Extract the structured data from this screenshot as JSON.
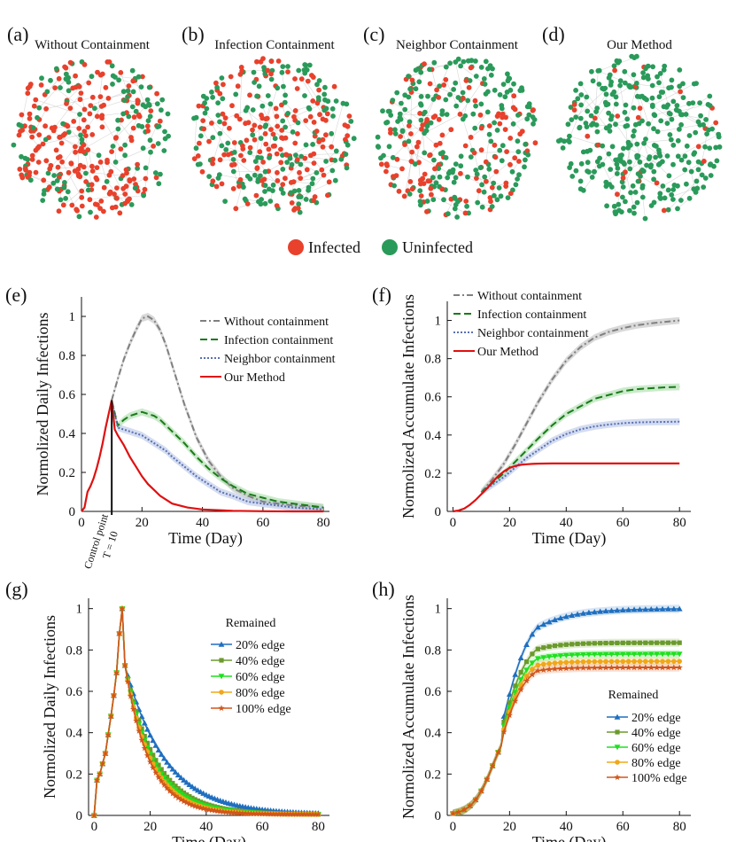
{
  "colors": {
    "infected": "#e8412c",
    "uninfected": "#2a9a5a",
    "wo": "#808080",
    "ic": "#1a7a1a",
    "nc": "#5a70b0",
    "ours": "#e01010",
    "e20": "#1f6fc0",
    "e40": "#6b9a2c",
    "e60": "#1fe01f",
    "e80": "#f0a818",
    "e100": "#d0561c"
  },
  "networks": [
    {
      "tag": "(a)",
      "title": "Without Containment",
      "infected_fraction": 0.72
    },
    {
      "tag": "(b)",
      "title": "Infection Containment",
      "infected_fraction": 0.55
    },
    {
      "tag": "(c)",
      "title": "Neighbor Containment",
      "infected_fraction": 0.42
    },
    {
      "tag": "(d)",
      "title": "Our Method",
      "infected_fraction": 0.08
    }
  ],
  "node_legend": {
    "infected": "Infected",
    "uninfected": "Uninfected"
  },
  "chart_data": [
    {
      "id": "e",
      "tag": "(e)",
      "type": "line",
      "xlabel": "Time (Day)",
      "ylabel": "Normolized Daily Infections",
      "xlim": [
        0,
        82
      ],
      "ylim": [
        0,
        1.1
      ],
      "xticks": [
        0,
        20,
        40,
        60,
        80
      ],
      "yticks": [
        0,
        0.2,
        0.4,
        0.6,
        0.8,
        1
      ],
      "ytick_labels": [
        "0",
        "0.2",
        "0.4",
        "0.6",
        "0.8",
        "1"
      ],
      "annotation": {
        "x": 10,
        "label1": "Control point",
        "label2": "T = 10"
      },
      "series": [
        {
          "name": "Without containment",
          "key": "wo",
          "style": "dashdot",
          "shade": true,
          "x": [
            10,
            12,
            14,
            16,
            18,
            20,
            22,
            24,
            26,
            28,
            30,
            34,
            38,
            42,
            46,
            50,
            55,
            60,
            65,
            70,
            75,
            80
          ],
          "y": [
            0.57,
            0.68,
            0.78,
            0.86,
            0.93,
            0.99,
            1.0,
            0.98,
            0.93,
            0.85,
            0.75,
            0.55,
            0.38,
            0.26,
            0.18,
            0.12,
            0.08,
            0.05,
            0.04,
            0.03,
            0.025,
            0.02
          ]
        },
        {
          "name": "Infection containment",
          "key": "ic",
          "style": "dash",
          "shade": true,
          "x": [
            10,
            12,
            14,
            16,
            18,
            20,
            22,
            24,
            26,
            28,
            30,
            34,
            38,
            42,
            46,
            50,
            55,
            60,
            65,
            70,
            75,
            80
          ],
          "y": [
            0.57,
            0.44,
            0.47,
            0.49,
            0.5,
            0.51,
            0.5,
            0.49,
            0.47,
            0.44,
            0.41,
            0.35,
            0.28,
            0.22,
            0.17,
            0.13,
            0.09,
            0.07,
            0.05,
            0.04,
            0.03,
            0.02
          ]
        },
        {
          "name": "Neighbor containment",
          "key": "nc",
          "style": "dot",
          "shade": true,
          "x": [
            10,
            12,
            14,
            16,
            18,
            20,
            22,
            24,
            26,
            28,
            30,
            34,
            38,
            42,
            46,
            50,
            55,
            60,
            65,
            70,
            75,
            80
          ],
          "y": [
            0.57,
            0.43,
            0.42,
            0.41,
            0.4,
            0.39,
            0.37,
            0.35,
            0.33,
            0.31,
            0.28,
            0.23,
            0.18,
            0.14,
            0.1,
            0.08,
            0.05,
            0.04,
            0.03,
            0.02,
            0.015,
            0.01
          ]
        },
        {
          "name": "Our Method",
          "key": "ours",
          "style": "solid",
          "shade": false,
          "x": [
            0,
            1,
            2,
            3,
            4,
            5,
            6,
            7,
            8,
            9,
            10,
            11,
            12,
            14,
            16,
            18,
            20,
            22,
            24,
            26,
            28,
            30,
            35,
            40,
            50,
            60,
            70,
            80
          ],
          "y": [
            0,
            0.02,
            0.1,
            0.13,
            0.17,
            0.22,
            0.28,
            0.35,
            0.43,
            0.5,
            0.57,
            0.42,
            0.39,
            0.34,
            0.28,
            0.23,
            0.18,
            0.14,
            0.11,
            0.08,
            0.06,
            0.04,
            0.02,
            0.01,
            0.003,
            0.001,
            0,
            0
          ]
        }
      ],
      "legend_order": [
        "wo",
        "ic",
        "nc",
        "ours"
      ]
    },
    {
      "id": "f",
      "tag": "(f)",
      "type": "line",
      "xlabel": "Time (Day)",
      "ylabel": "Normolized Accumulate Infections",
      "xlim": [
        -2,
        84
      ],
      "ylim": [
        0,
        1.1
      ],
      "xticks": [
        0,
        20,
        40,
        60,
        80
      ],
      "yticks": [
        0,
        0.2,
        0.4,
        0.6,
        0.8,
        1
      ],
      "ytick_labels": [
        "0",
        "0.2",
        "0.4",
        "0.6",
        "0.8",
        "1"
      ],
      "series": [
        {
          "name": "Without containment",
          "key": "wo",
          "style": "dashdot",
          "shade": true,
          "x": [
            10,
            14,
            18,
            22,
            26,
            30,
            35,
            40,
            45,
            50,
            55,
            60,
            65,
            70,
            75,
            80
          ],
          "y": [
            0.1,
            0.17,
            0.25,
            0.35,
            0.46,
            0.57,
            0.69,
            0.79,
            0.86,
            0.91,
            0.94,
            0.96,
            0.975,
            0.985,
            0.993,
            1.0
          ]
        },
        {
          "name": "Infection containment",
          "key": "ic",
          "style": "dash",
          "shade": true,
          "x": [
            10,
            14,
            18,
            22,
            26,
            30,
            35,
            40,
            45,
            50,
            55,
            60,
            65,
            70,
            75,
            80
          ],
          "y": [
            0.1,
            0.15,
            0.2,
            0.26,
            0.32,
            0.38,
            0.45,
            0.51,
            0.55,
            0.59,
            0.61,
            0.63,
            0.64,
            0.645,
            0.65,
            0.652
          ]
        },
        {
          "name": "Neighbor containment",
          "key": "nc",
          "style": "dot",
          "shade": true,
          "x": [
            10,
            14,
            18,
            22,
            26,
            30,
            35,
            40,
            45,
            50,
            55,
            60,
            65,
            70,
            75,
            80
          ],
          "y": [
            0.1,
            0.14,
            0.18,
            0.23,
            0.28,
            0.32,
            0.37,
            0.405,
            0.43,
            0.445,
            0.455,
            0.462,
            0.466,
            0.468,
            0.469,
            0.47
          ]
        },
        {
          "name": "Our Method",
          "key": "ours",
          "style": "solid",
          "shade": false,
          "x": [
            0,
            2,
            4,
            6,
            8,
            10,
            12,
            14,
            16,
            18,
            20,
            22,
            24,
            26,
            28,
            30,
            35,
            40,
            50,
            60,
            70,
            80
          ],
          "y": [
            0,
            0.005,
            0.015,
            0.035,
            0.06,
            0.09,
            0.12,
            0.155,
            0.185,
            0.21,
            0.228,
            0.238,
            0.244,
            0.247,
            0.249,
            0.25,
            0.251,
            0.251,
            0.251,
            0.251,
            0.251,
            0.251
          ]
        }
      ],
      "legend_order": [
        "wo",
        "ic",
        "nc",
        "ours"
      ]
    },
    {
      "id": "g",
      "tag": "(g)",
      "type": "line",
      "xlabel": "Time (Day)",
      "ylabel": "Normolized Daily Infections",
      "xlim": [
        -2,
        84
      ],
      "ylim": [
        0,
        1.05
      ],
      "xticks": [
        0,
        20,
        40,
        60,
        80
      ],
      "yticks": [
        0,
        0.2,
        0.4,
        0.6,
        0.8,
        1
      ],
      "ytick_labels": [
        "0",
        "0.2",
        "0.4",
        "0.6",
        "0.8",
        "1"
      ],
      "legend_title": "Remained",
      "series": [
        {
          "name": "20% edge",
          "key": "e20",
          "marker": "tri",
          "decay": 0.07
        },
        {
          "name": "40% edge",
          "key": "e40",
          "marker": "sq",
          "decay": 0.092
        },
        {
          "name": "60% edge",
          "key": "e60",
          "marker": "tridown",
          "decay": 0.1
        },
        {
          "name": "80% edge",
          "key": "e80",
          "marker": "circ",
          "decay": 0.108
        },
        {
          "name": "100% edge",
          "key": "e100",
          "marker": "star",
          "decay": 0.116
        }
      ],
      "rise_x": [
        0,
        1,
        2,
        3,
        4,
        5,
        6,
        7,
        8,
        9,
        10
      ],
      "rise_y": [
        0,
        0.17,
        0.2,
        0.25,
        0.3,
        0.39,
        0.48,
        0.58,
        0.69,
        0.88,
        1.0
      ],
      "peak_after": 0.72
    },
    {
      "id": "h",
      "tag": "(h)",
      "type": "line",
      "xlabel": "Time (Day)",
      "ylabel": "Normolized Accumulate Infections",
      "xlim": [
        -2,
        84
      ],
      "ylim": [
        0,
        1.05
      ],
      "xticks": [
        0,
        20,
        40,
        60,
        80
      ],
      "yticks": [
        0,
        0.2,
        0.4,
        0.6,
        0.8,
        1
      ],
      "ytick_labels": [
        "0",
        "0.2",
        "0.4",
        "0.6",
        "0.8",
        "1"
      ],
      "legend_title": "Remained",
      "series": [
        {
          "name": "20% edge",
          "key": "e20",
          "marker": "tri",
          "final": 1.0,
          "k": 0.085
        },
        {
          "name": "40% edge",
          "key": "e40",
          "marker": "sq",
          "final": 0.835,
          "k": 0.12
        },
        {
          "name": "60% edge",
          "key": "e60",
          "marker": "tridown",
          "final": 0.78,
          "k": 0.13
        },
        {
          "name": "80% edge",
          "key": "e80",
          "marker": "circ",
          "final": 0.745,
          "k": 0.135
        },
        {
          "name": "100% edge",
          "key": "e100",
          "marker": "star",
          "final": 0.715,
          "k": 0.14
        }
      ]
    }
  ]
}
